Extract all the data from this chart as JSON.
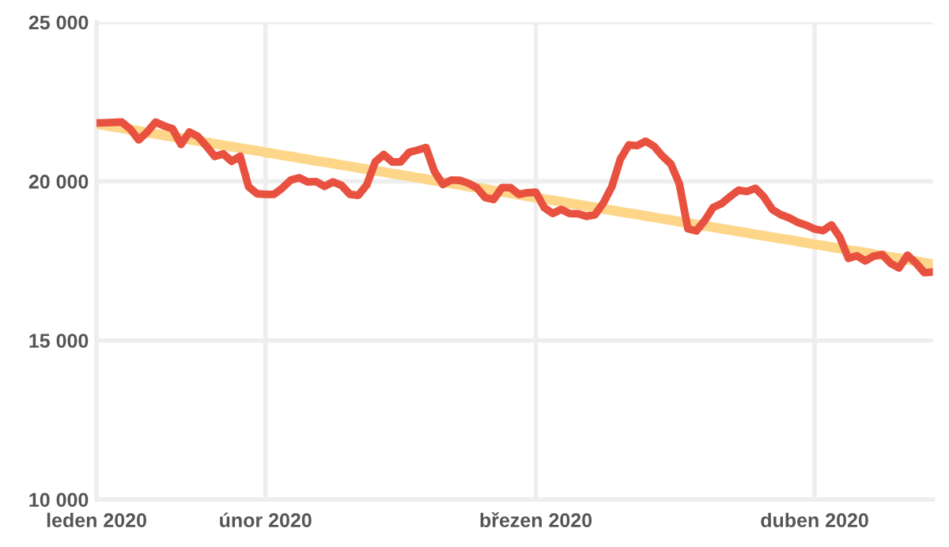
{
  "chart_data": {
    "type": "line",
    "categories": [
      "leden 2020",
      null,
      null,
      null,
      null,
      null,
      null,
      null,
      null,
      null,
      null,
      null,
      null,
      null,
      null,
      null,
      null,
      null,
      null,
      null,
      "únor 2020",
      null,
      null,
      null,
      null,
      null,
      null,
      null,
      null,
      null,
      null,
      null,
      null,
      null,
      null,
      null,
      null,
      null,
      null,
      null,
      null,
      null,
      null,
      null,
      null,
      null,
      null,
      null,
      null,
      null,
      null,
      null,
      "březen 2020",
      null,
      null,
      null,
      null,
      null,
      null,
      null,
      null,
      null,
      null,
      null,
      null,
      null,
      null,
      null,
      null,
      null,
      null,
      null,
      null,
      null,
      null,
      null,
      null,
      null,
      null,
      null,
      null,
      null,
      null,
      null,
      null,
      "duben 2020",
      null,
      null,
      null,
      null,
      null,
      null,
      null,
      null,
      null,
      null,
      null,
      null,
      null,
      null
    ],
    "ylim": [
      10000,
      25000
    ],
    "yticks": [
      {
        "value": 10000,
        "label": "10 000"
      },
      {
        "value": 15000,
        "label": "15 000"
      },
      {
        "value": 20000,
        "label": "20 000"
      },
      {
        "value": 25000,
        "label": "25 000"
      }
    ],
    "grid": true,
    "marker": "none",
    "series": [
      {
        "color": "#fdd68a",
        "values": [
          21800,
          21760,
          21710,
          21670,
          21620,
          21580,
          21530,
          21490,
          21440,
          21400,
          21360,
          21310,
          21270,
          21220,
          21180,
          21130,
          21090,
          21040,
          21000,
          20960,
          20910,
          20870,
          20820,
          20780,
          20730,
          20690,
          20640,
          20600,
          20560,
          20510,
          20470,
          20420,
          20380,
          20330,
          20290,
          20240,
          20200,
          20160,
          20110,
          20070,
          20020,
          19980,
          19930,
          19890,
          19840,
          19800,
          19760,
          19710,
          19670,
          19620,
          19580,
          19530,
          19490,
          19440,
          19400,
          19360,
          19310,
          19270,
          19220,
          19180,
          19130,
          19090,
          19040,
          19000,
          18960,
          18910,
          18870,
          18820,
          18780,
          18730,
          18690,
          18640,
          18600,
          18560,
          18510,
          18470,
          18420,
          18380,
          18330,
          18290,
          18240,
          18200,
          18160,
          18110,
          18070,
          18020,
          17980,
          17930,
          17890,
          17840,
          17800,
          17760,
          17710,
          17670,
          17620,
          17580,
          17530,
          17490,
          17440,
          17400
        ]
      },
      {
        "color": "#e8513f",
        "values": [
          21830,
          21840,
          21850,
          21860,
          21640,
          21300,
          21550,
          21860,
          21740,
          21650,
          21160,
          21550,
          21410,
          21110,
          20780,
          20860,
          20630,
          20790,
          19830,
          19610,
          19590,
          19590,
          19790,
          20040,
          20110,
          19980,
          19990,
          19840,
          19980,
          19870,
          19590,
          19560,
          19890,
          20610,
          20840,
          20610,
          20610,
          20910,
          20980,
          21060,
          20310,
          19900,
          20040,
          20030,
          19940,
          19800,
          19490,
          19430,
          19800,
          19800,
          19590,
          19640,
          19660,
          19170,
          18990,
          19120,
          18990,
          18980,
          18900,
          18950,
          19320,
          19830,
          20690,
          21140,
          21120,
          21260,
          21100,
          20790,
          20540,
          19910,
          18510,
          18440,
          18770,
          19180,
          19300,
          19520,
          19720,
          19680,
          19780,
          19510,
          19110,
          18950,
          18850,
          18710,
          18620,
          18500,
          18450,
          18630,
          18240,
          17580,
          17660,
          17500,
          17650,
          17700,
          17420,
          17280,
          17680,
          17430,
          17130,
          17150
        ]
      }
    ]
  }
}
